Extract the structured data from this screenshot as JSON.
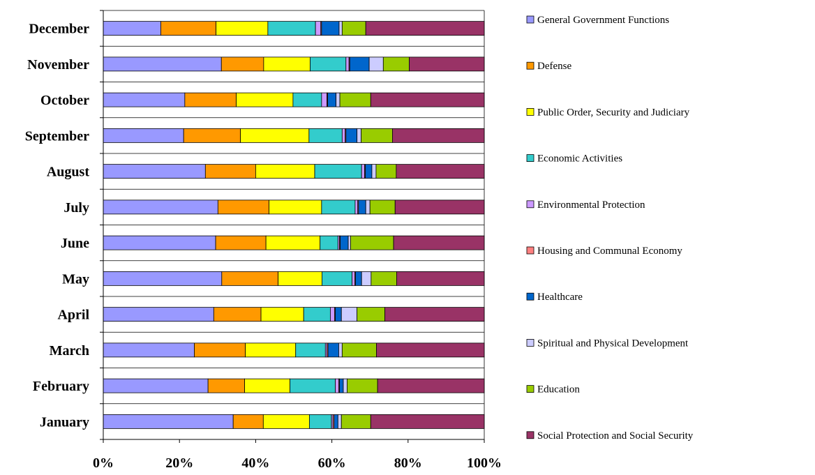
{
  "chart_data": {
    "type": "bar",
    "orientation": "horizontal",
    "stacked": "percent",
    "categories": [
      "January",
      "February",
      "March",
      "April",
      "May",
      "June",
      "July",
      "August",
      "September",
      "October",
      "November",
      "December"
    ],
    "x_ticks": [
      "0%",
      "20%",
      "40%",
      "60%",
      "80%",
      "100%"
    ],
    "xlim": [
      0,
      100
    ],
    "grid": "horizontal",
    "legend": "right",
    "series": [
      {
        "name": "General Government Functions",
        "color": "#9999ff",
        "values": [
          34.1,
          27.5,
          23.9,
          29.0,
          31.1,
          29.5,
          30.1,
          26.8,
          21.1,
          21.4,
          31.0,
          15.1
        ]
      },
      {
        "name": "Defense",
        "color": "#ff9900",
        "values": [
          7.9,
          9.6,
          13.4,
          12.4,
          14.8,
          13.2,
          13.4,
          13.2,
          14.9,
          13.5,
          11.1,
          14.5
        ]
      },
      {
        "name": "Public Order, Security and Judiciary",
        "color": "#ffff00",
        "values": [
          12.1,
          11.9,
          13.2,
          11.2,
          11.5,
          14.2,
          13.8,
          15.5,
          18.0,
          14.9,
          12.2,
          13.6
        ]
      },
      {
        "name": "Economic Activities",
        "color": "#33cccc",
        "values": [
          5.8,
          11.9,
          7.8,
          7.0,
          7.9,
          4.7,
          8.8,
          12.3,
          8.7,
          7.5,
          9.4,
          12.5
        ]
      },
      {
        "name": "Environmental Protection",
        "color": "#cc99ff",
        "values": [
          0.4,
          0.9,
          0.4,
          1.1,
          0.7,
          0.4,
          0.7,
          0.8,
          0.8,
          1.4,
          0.8,
          1.4
        ]
      },
      {
        "name": "Housing and Communal Economy",
        "color": "#ff8080",
        "values": [
          0.3,
          0.2,
          0.3,
          0.2,
          0.2,
          0.2,
          0.2,
          0.2,
          0.2,
          0.2,
          0.2,
          0.2
        ]
      },
      {
        "name": "Healthcare",
        "color": "#0066cc",
        "values": [
          1.0,
          1.0,
          2.8,
          1.6,
          1.6,
          2.1,
          1.9,
          1.7,
          2.9,
          2.2,
          5.1,
          4.6
        ]
      },
      {
        "name": "Spiritual and Physical Development",
        "color": "#ccccff",
        "values": [
          0.9,
          1.0,
          0.9,
          4.1,
          2.5,
          0.6,
          1.1,
          1.1,
          1.1,
          1.0,
          3.7,
          0.8
        ]
      },
      {
        "name": "Education",
        "color": "#99cc00",
        "values": [
          7.7,
          8.0,
          9.0,
          7.3,
          6.7,
          11.3,
          6.6,
          5.3,
          8.2,
          8.1,
          6.8,
          6.2
        ]
      },
      {
        "name": "Social Protection and Social Security",
        "color": "#993366",
        "values": [
          29.8,
          28.0,
          28.3,
          26.1,
          23.0,
          23.8,
          23.4,
          23.1,
          24.1,
          29.8,
          19.7,
          31.1
        ]
      }
    ]
  }
}
